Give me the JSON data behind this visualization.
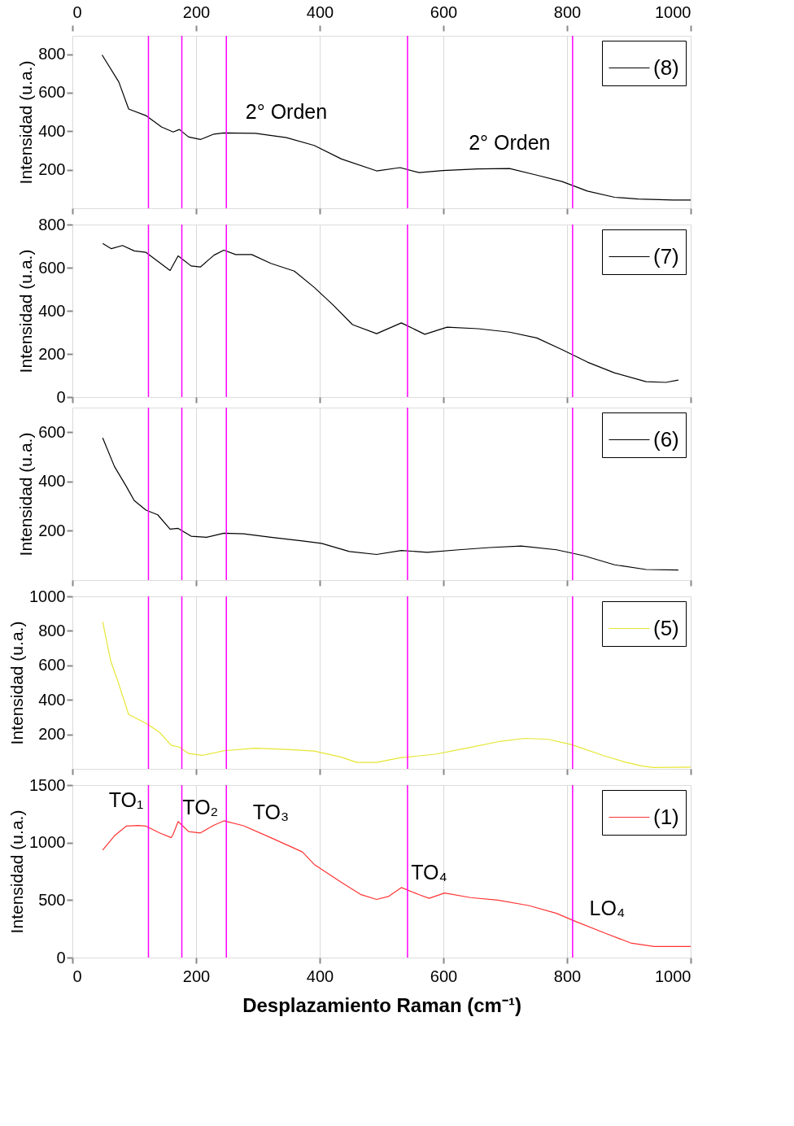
{
  "chart_data": [
    {
      "type": "line",
      "ylabel": "Intensidad (u.a.)",
      "xlim": [
        0,
        1000
      ],
      "xticks": [
        0,
        200,
        400,
        600,
        800,
        1000
      ],
      "tick_labels": "y",
      "x2lim": [
        0,
        1000
      ],
      "x2ticks": [
        0,
        200,
        400,
        600,
        800,
        1000
      ],
      "ylim": [
        0,
        895
      ],
      "yticks": [
        200,
        400,
        600,
        800
      ],
      "grid": "x",
      "legend": "top right",
      "x": [
        48,
        75,
        91,
        119,
        144,
        163,
        173,
        188,
        207,
        229,
        245,
        296,
        346,
        391,
        435,
        492,
        530,
        561,
        599,
        656,
        707,
        751,
        792,
        833,
        877,
        915,
        972,
        1000
      ],
      "series": [
        {
          "name": "(8)",
          "color": "#000000",
          "values": [
            796,
            656,
            515,
            481,
            422,
            396,
            409,
            370,
            357,
            385,
            391,
            389,
            367,
            326,
            256,
            194,
            211,
            185,
            196,
            204,
            206,
            172,
            139,
            89,
            57,
            48,
            43,
            43
          ]
        }
      ],
      "ref_lines": [
        {
          "axis": "x",
          "value": 123,
          "color": "#ff00ff"
        },
        {
          "axis": "x",
          "value": 177,
          "color": "#ff00ff"
        },
        {
          "axis": "x",
          "value": 249,
          "color": "#ff00ff"
        },
        {
          "axis": "x",
          "value": 542,
          "color": "#ff00ff"
        },
        {
          "axis": "x",
          "value": 809,
          "color": "#ff00ff"
        }
      ],
      "annotations": [
        {
          "text": "2° Orden",
          "x": 346,
          "y": 367
        },
        {
          "text": "2° Orden",
          "x": 707,
          "y": 206
        }
      ]
    },
    {
      "type": "line",
      "ylabel": "Intensidad (u.a.)",
      "xlim": [
        0,
        1000
      ],
      "xticks": [
        0,
        200,
        400,
        600,
        800,
        1000
      ],
      "tick_labels": "y",
      "ylim": [
        0,
        800
      ],
      "yticks": [
        0,
        200,
        400,
        600,
        800
      ],
      "grid": "x",
      "legend": "top right",
      "x": [
        49,
        63,
        81,
        100,
        119,
        144,
        158,
        171,
        192,
        207,
        229,
        245,
        264,
        290,
        321,
        359,
        391,
        422,
        453,
        492,
        532,
        570,
        606,
        656,
        707,
        751,
        792,
        833,
        877,
        928,
        960,
        980
      ],
      "series": [
        {
          "name": "(7)",
          "color": "#000000",
          "values": [
            712,
            688,
            703,
            678,
            671,
            617,
            587,
            655,
            608,
            603,
            658,
            681,
            661,
            661,
            620,
            584,
            509,
            426,
            336,
            294,
            344,
            291,
            324,
            317,
            301,
            274,
            220,
            162,
            112,
            71,
            68,
            79
          ]
        }
      ],
      "ref_lines": [
        {
          "axis": "x",
          "value": 123,
          "color": "#ff00ff"
        },
        {
          "axis": "x",
          "value": 177,
          "color": "#ff00ff"
        },
        {
          "axis": "x",
          "value": 249,
          "color": "#ff00ff"
        },
        {
          "axis": "x",
          "value": 542,
          "color": "#ff00ff"
        },
        {
          "axis": "x",
          "value": 809,
          "color": "#ff00ff"
        }
      ]
    },
    {
      "type": "line",
      "ylabel": "Intensidad (u.a.)",
      "xlim": [
        0,
        1000
      ],
      "xticks": [
        0,
        200,
        400,
        600,
        800,
        1000
      ],
      "tick_labels": "y",
      "ylim": [
        0,
        700
      ],
      "yticks": [
        200,
        400,
        600
      ],
      "grid": "x",
      "legend": "top right",
      "x": [
        49,
        68,
        87,
        100,
        119,
        138,
        158,
        171,
        192,
        217,
        245,
        277,
        321,
        372,
        403,
        448,
        492,
        532,
        574,
        625,
        675,
        726,
        783,
        827,
        877,
        928,
        980
      ],
      "series": [
        {
          "name": "(6)",
          "color": "#000000",
          "values": [
            577,
            461,
            381,
            323,
            284,
            265,
            207,
            210,
            178,
            174,
            190,
            188,
            174,
            159,
            149,
            116,
            104,
            120,
            113,
            123,
            132,
            138,
            123,
            99,
            62,
            43,
            41
          ]
        }
      ],
      "ref_lines": [
        {
          "axis": "x",
          "value": 123,
          "color": "#ff00ff"
        },
        {
          "axis": "x",
          "value": 177,
          "color": "#ff00ff"
        },
        {
          "axis": "x",
          "value": 249,
          "color": "#ff00ff"
        },
        {
          "axis": "x",
          "value": 542,
          "color": "#ff00ff"
        },
        {
          "axis": "x",
          "value": 809,
          "color": "#ff00ff"
        }
      ]
    },
    {
      "type": "line",
      "ylabel": "Intensidad (u.a.)",
      "xlim": [
        0,
        1000
      ],
      "xticks": [
        0,
        200,
        400,
        600,
        800,
        1000
      ],
      "tick_labels": "y",
      "ylim": [
        0,
        1000
      ],
      "yticks": [
        200,
        400,
        600,
        800,
        1000
      ],
      "grid": "x",
      "legend": "top right",
      "x": [
        49,
        62,
        75,
        91,
        119,
        141,
        160,
        173,
        188,
        210,
        245,
        296,
        346,
        391,
        435,
        460,
        492,
        530,
        587,
        637,
        688,
        732,
        770,
        808,
        858,
        896,
        922,
        940,
        1000
      ],
      "series": [
        {
          "name": "(5)",
          "color": "#e6e632",
          "values": [
            852,
            625,
            491,
            315,
            264,
            212,
            136,
            126,
            89,
            78,
            105,
            120,
            113,
            103,
            68,
            37,
            37,
            64,
            85,
            120,
            157,
            177,
            171,
            140,
            78,
            37,
            16,
            8,
            10
          ]
        }
      ],
      "ref_lines": [
        {
          "axis": "x",
          "value": 123,
          "color": "#ff00ff"
        },
        {
          "axis": "x",
          "value": 177,
          "color": "#ff00ff"
        },
        {
          "axis": "x",
          "value": 249,
          "color": "#ff00ff"
        },
        {
          "axis": "x",
          "value": 542,
          "color": "#ff00ff"
        },
        {
          "axis": "x",
          "value": 809,
          "color": "#ff00ff"
        }
      ]
    },
    {
      "type": "line",
      "ylabel": "Intensidad (u.a.)",
      "xlabel": "Desplazamiento Raman (cm⁻¹)",
      "xlim": [
        0,
        1000
      ],
      "xticks": [
        0,
        200,
        400,
        600,
        800,
        1000
      ],
      "ylim": [
        0,
        1500
      ],
      "yticks": [
        0,
        500,
        1000,
        1500
      ],
      "grid": "x",
      "legend": "top right",
      "x": [
        49,
        68,
        87,
        106,
        119,
        141,
        160,
        163,
        171,
        188,
        207,
        229,
        245,
        277,
        321,
        372,
        391,
        435,
        467,
        492,
        511,
        532,
        561,
        577,
        602,
        644,
        688,
        738,
        783,
        814,
        865,
        903,
        941,
        980,
        1000
      ],
      "series": [
        {
          "name": "(1)",
          "color": "#ff3333",
          "values": [
            935,
            1059,
            1143,
            1149,
            1143,
            1084,
            1043,
            1074,
            1183,
            1096,
            1084,
            1152,
            1189,
            1146,
            1043,
            919,
            811,
            655,
            547,
            506,
            531,
            609,
            547,
            516,
            562,
            522,
            500,
            453,
            385,
            314,
            205,
            127,
            96,
            96,
            96
          ]
        }
      ],
      "ref_lines": [
        {
          "axis": "x",
          "value": 123,
          "color": "#ff00ff"
        },
        {
          "axis": "x",
          "value": 177,
          "color": "#ff00ff"
        },
        {
          "axis": "x",
          "value": 249,
          "color": "#ff00ff"
        },
        {
          "axis": "x",
          "value": 542,
          "color": "#ff00ff"
        },
        {
          "axis": "x",
          "value": 809,
          "color": "#ff00ff"
        }
      ],
      "annotations": [
        {
          "text": "TO₁",
          "x": 87,
          "y": 1143
        },
        {
          "text": "TO₂",
          "x": 207,
          "y": 1084
        },
        {
          "text": "TO₃",
          "x": 321,
          "y": 1043
        },
        {
          "text": "TO₄",
          "x": 577,
          "y": 516
        },
        {
          "text": "LO₄",
          "x": 865,
          "y": 205
        }
      ]
    }
  ]
}
